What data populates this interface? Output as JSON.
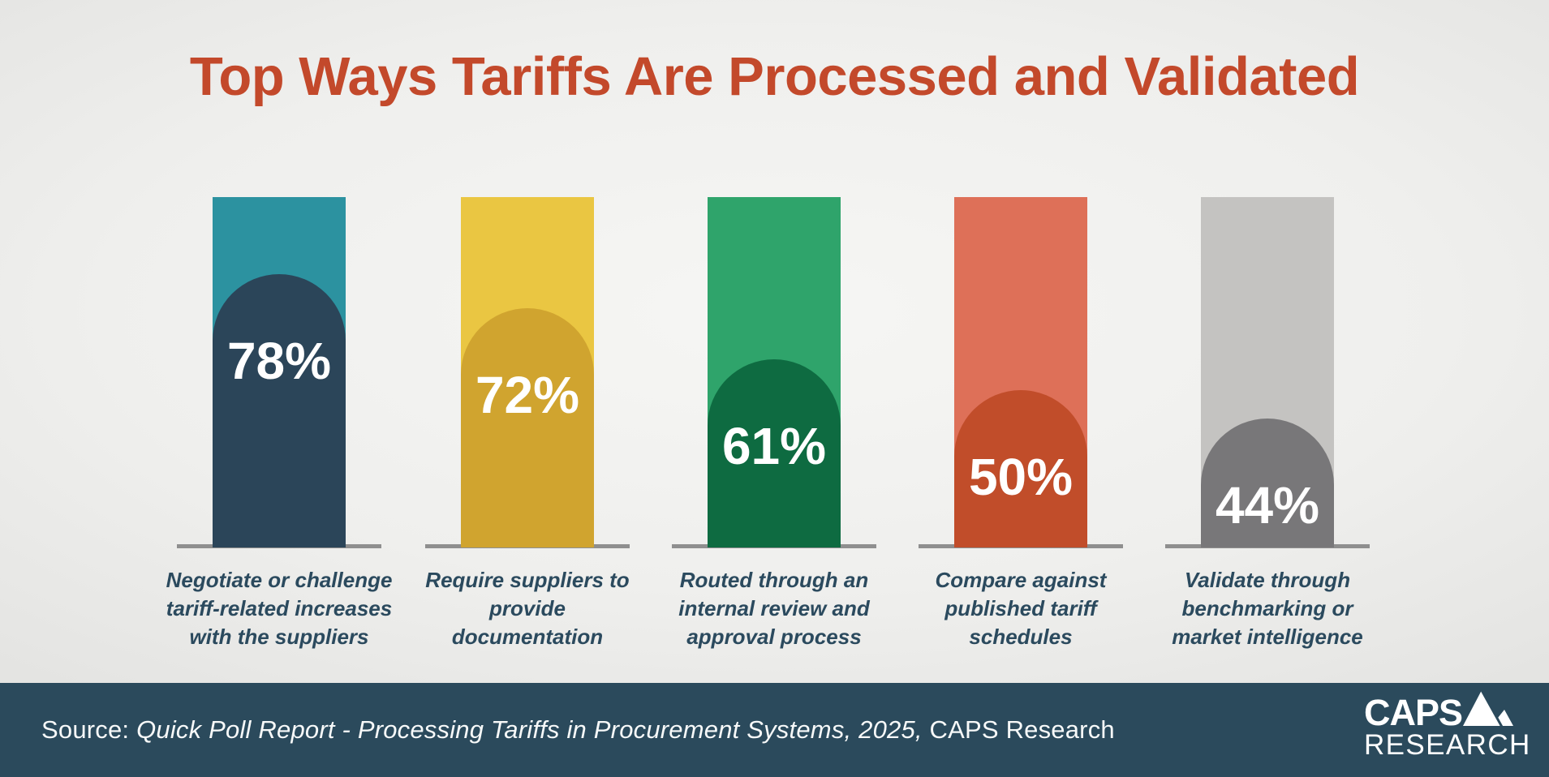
{
  "page": {
    "title": "Top Ways Tariffs Are Processed and Validated"
  },
  "chart_data": {
    "type": "bar",
    "title": "Top Ways Tariffs Are Processed and Validated",
    "unit": "%",
    "ylim": [
      0,
      100
    ],
    "orientation": "vertical",
    "grid": false,
    "legend": false,
    "note": "Each full-height column is a 100% backdrop; the darker dome height shows the reported share.",
    "categories": [
      "Negotiate or challenge tariff-related increases with the suppliers",
      "Require suppliers to provide documentation",
      "Routed through an internal review and approval process",
      "Compare against published tariff schedules",
      "Validate through benchmarking or market intelligence"
    ],
    "values": [
      78,
      72,
      61,
      50,
      44
    ],
    "bars": [
      {
        "value": 78,
        "value_label": "78%",
        "label": "Negotiate or challenge\ntariff-related increases\nwith the suppliers",
        "bar_color": "#2C92A0",
        "fill_color": "#2B4559",
        "fill_fraction": 0.78
      },
      {
        "value": 72,
        "value_label": "72%",
        "label": "Require suppliers to\nprovide\ndocumentation",
        "bar_color": "#EAC642",
        "fill_color": "#D0A42F",
        "fill_fraction": 0.682
      },
      {
        "value": 61,
        "value_label": "61%",
        "label": "Routed through an\ninternal review and\napproval process",
        "bar_color": "#2FA46B",
        "fill_color": "#0E6B41",
        "fill_fraction": 0.538
      },
      {
        "value": 50,
        "value_label": "50%",
        "label": "Compare against\npublished tariff\nschedules",
        "bar_color": "#DE7058",
        "fill_color": "#C14D2A",
        "fill_fraction": 0.45
      },
      {
        "value": 44,
        "value_label": "44%",
        "label": "Validate through\nbenchmarking or\nmarket intelligence",
        "bar_color": "#C4C3C1",
        "fill_color": "#787779",
        "fill_fraction": 0.369
      }
    ]
  },
  "footer": {
    "source_prefix": "Source: ",
    "source_italic": "Quick Poll Report - Processing Tariffs in Procurement Systems, 2025,",
    "source_suffix": " CAPS Research",
    "logo": {
      "line1": "CAPS",
      "line2": "RESEARCH"
    }
  },
  "colors": {
    "title_text": "#C3492B",
    "category_text": "#2B4A5E",
    "percent_text": "#FFFFFF",
    "footer_bg": "#2B4A5C",
    "baseline": "#8F8F8F"
  }
}
